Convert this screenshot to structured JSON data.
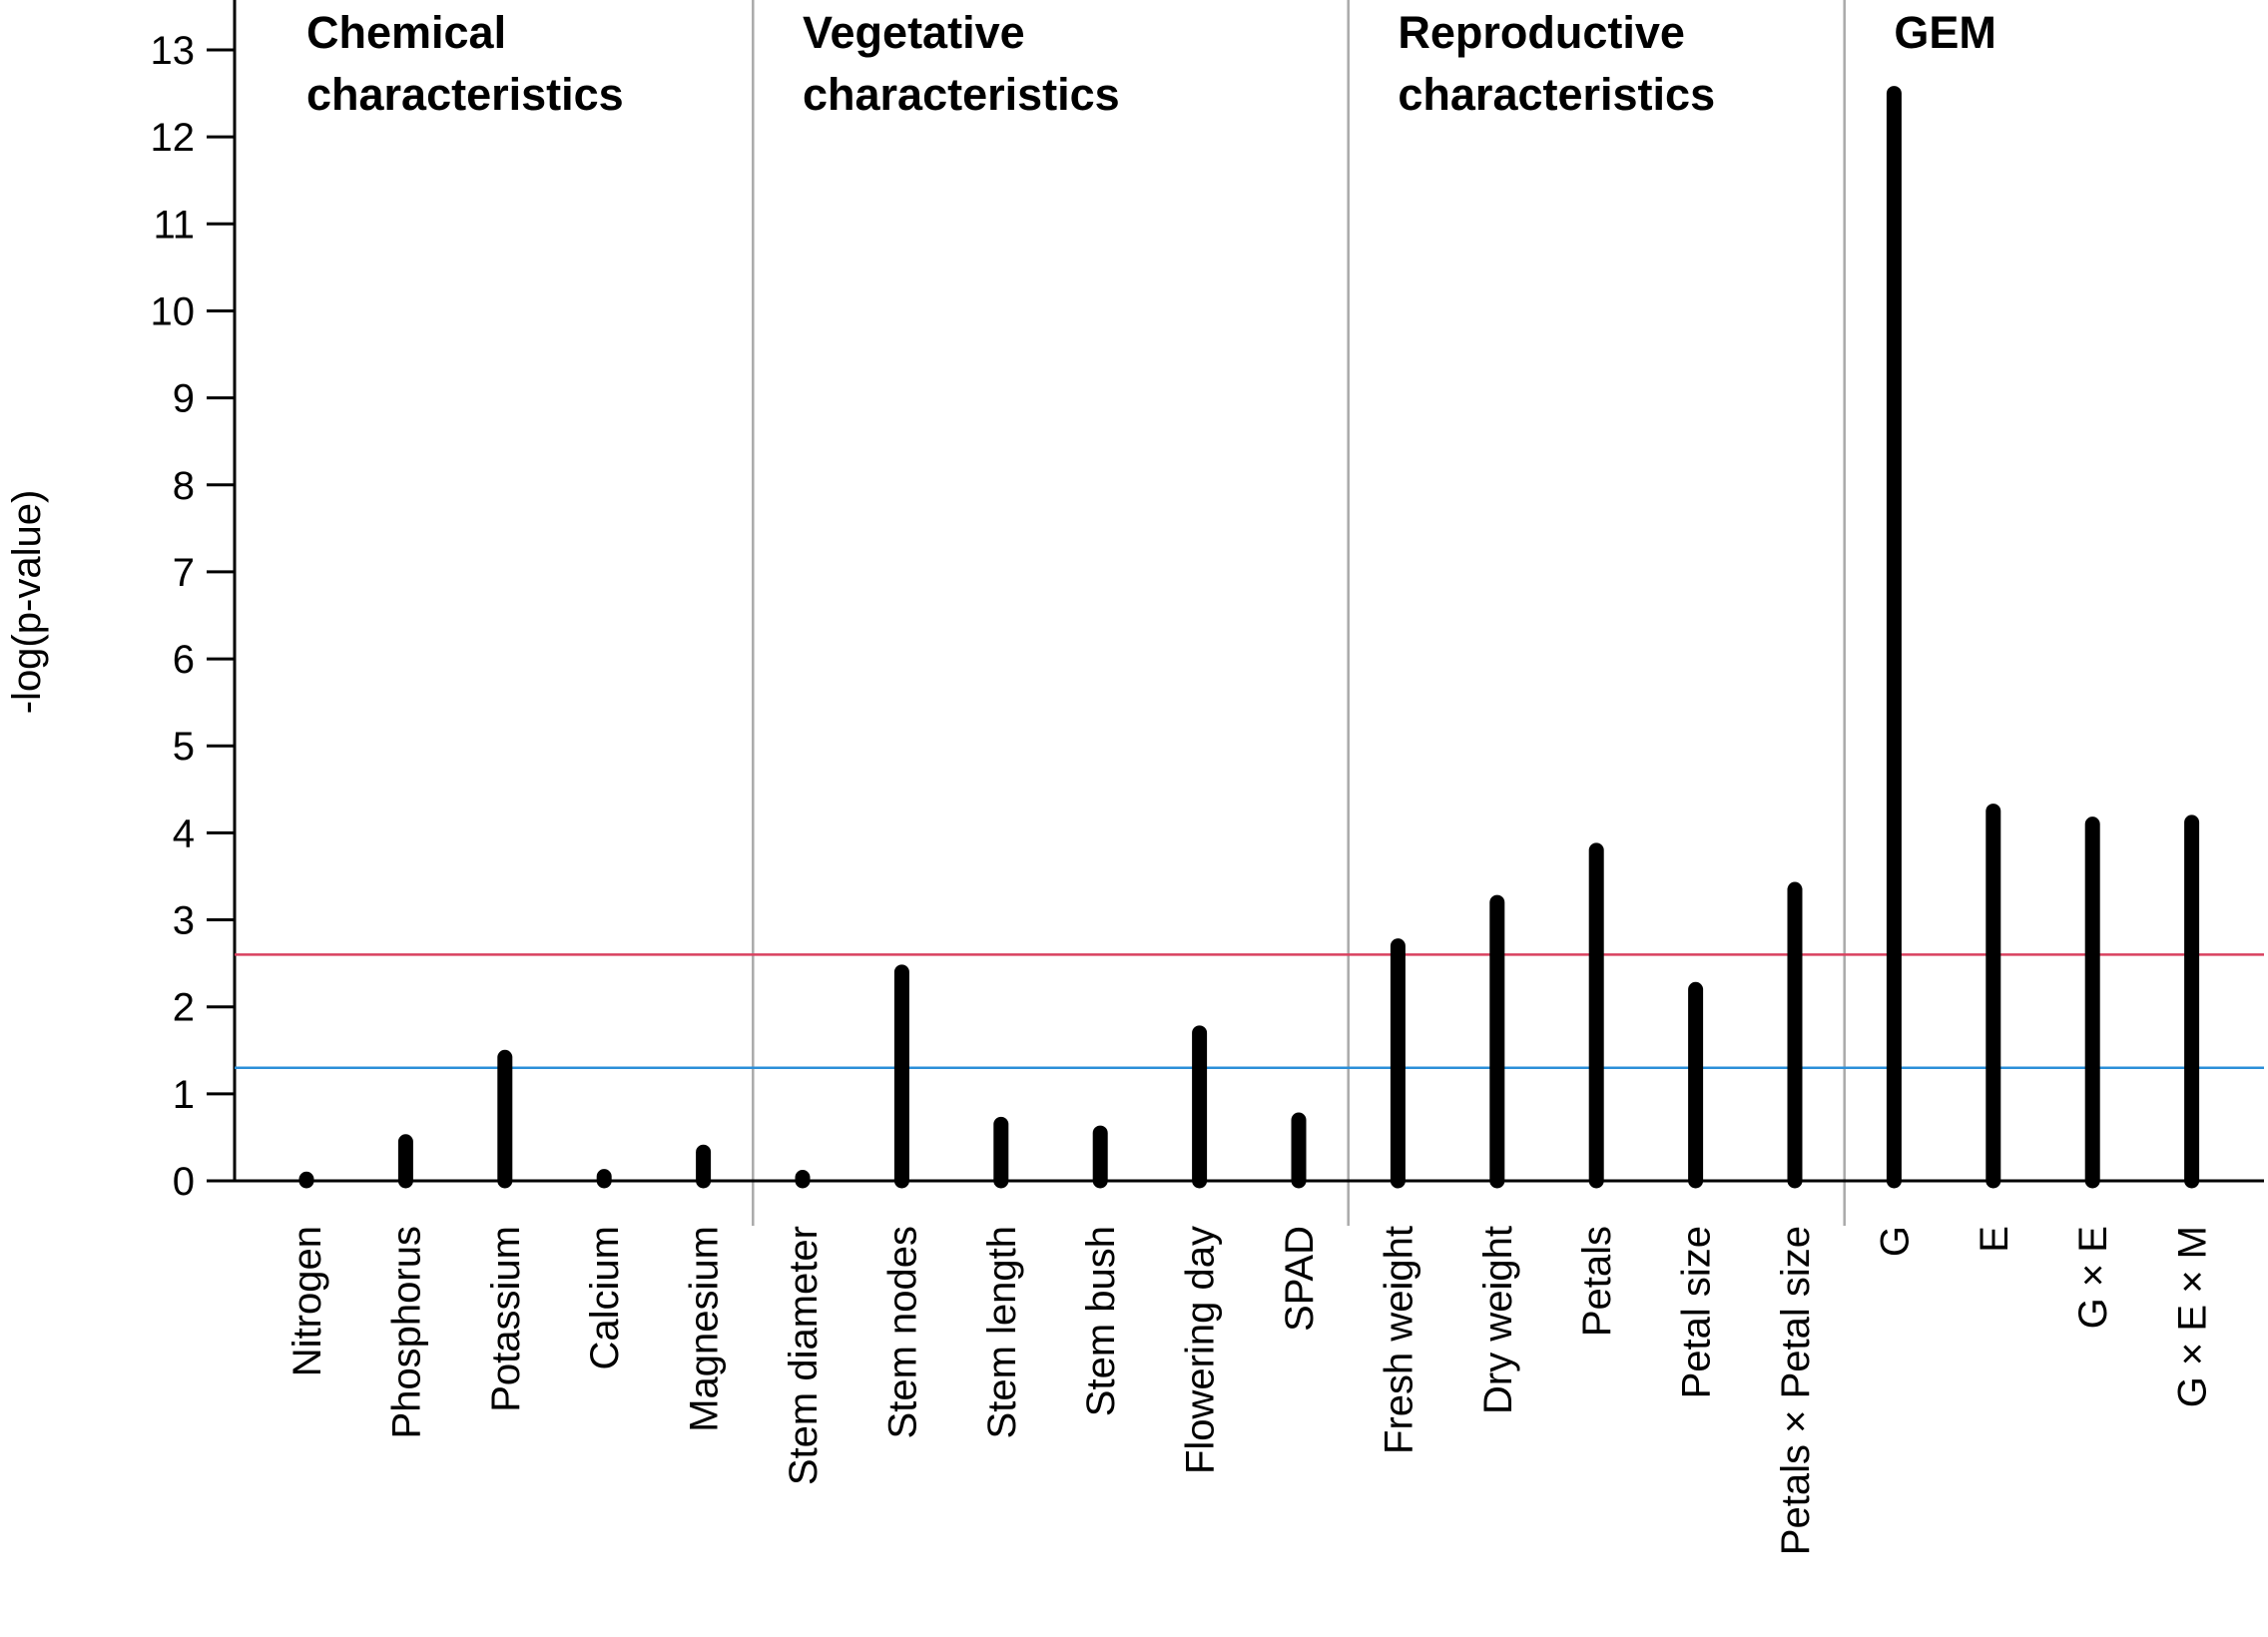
{
  "chart_data": {
    "type": "bar",
    "ylabel": "-log(p-value)",
    "ylim": [
      0,
      13
    ],
    "yticks": [
      0,
      1,
      2,
      3,
      4,
      5,
      6,
      7,
      8,
      9,
      10,
      11,
      12,
      13
    ],
    "thresholds": [
      {
        "name": "red-threshold",
        "value": 2.6,
        "color": "#d9415f"
      },
      {
        "name": "blue-threshold",
        "value": 1.3,
        "color": "#2b8fd9"
      }
    ],
    "groups": [
      {
        "name": "Chemical characteristics",
        "title_lines": [
          "Chemical",
          "characteristics"
        ],
        "categories": [
          "Nitrogen",
          "Phosphorus",
          "Potassium",
          "Calcium",
          "Magnesium"
        ],
        "values": [
          0.02,
          0.45,
          1.42,
          0.05,
          0.33
        ]
      },
      {
        "name": "Vegetative characteristics",
        "title_lines": [
          "Vegetative",
          "characteristics"
        ],
        "categories": [
          "Stem diameter",
          "Stem nodes",
          "Stem length",
          "Stem bush",
          "Flowering day",
          "SPAD"
        ],
        "values": [
          0.04,
          2.4,
          0.65,
          0.55,
          1.7,
          0.7
        ]
      },
      {
        "name": "Reproductive characteristics",
        "title_lines": [
          "Reproductive",
          "characteristics"
        ],
        "categories": [
          "Fresh weight",
          "Dry weight",
          "Petals",
          "Petal size",
          "Petals × Petal size"
        ],
        "values": [
          2.7,
          3.2,
          3.8,
          2.2,
          3.35
        ]
      },
      {
        "name": "GEM",
        "title_lines": [
          "GEM"
        ],
        "categories": [
          "G",
          "E",
          "G × E",
          "G × E × M"
        ],
        "values": [
          12.5,
          4.25,
          4.1,
          4.12
        ]
      }
    ],
    "colors": {
      "bar": "#000000",
      "separator": "#aaaaaa",
      "axis": "#000000"
    }
  }
}
